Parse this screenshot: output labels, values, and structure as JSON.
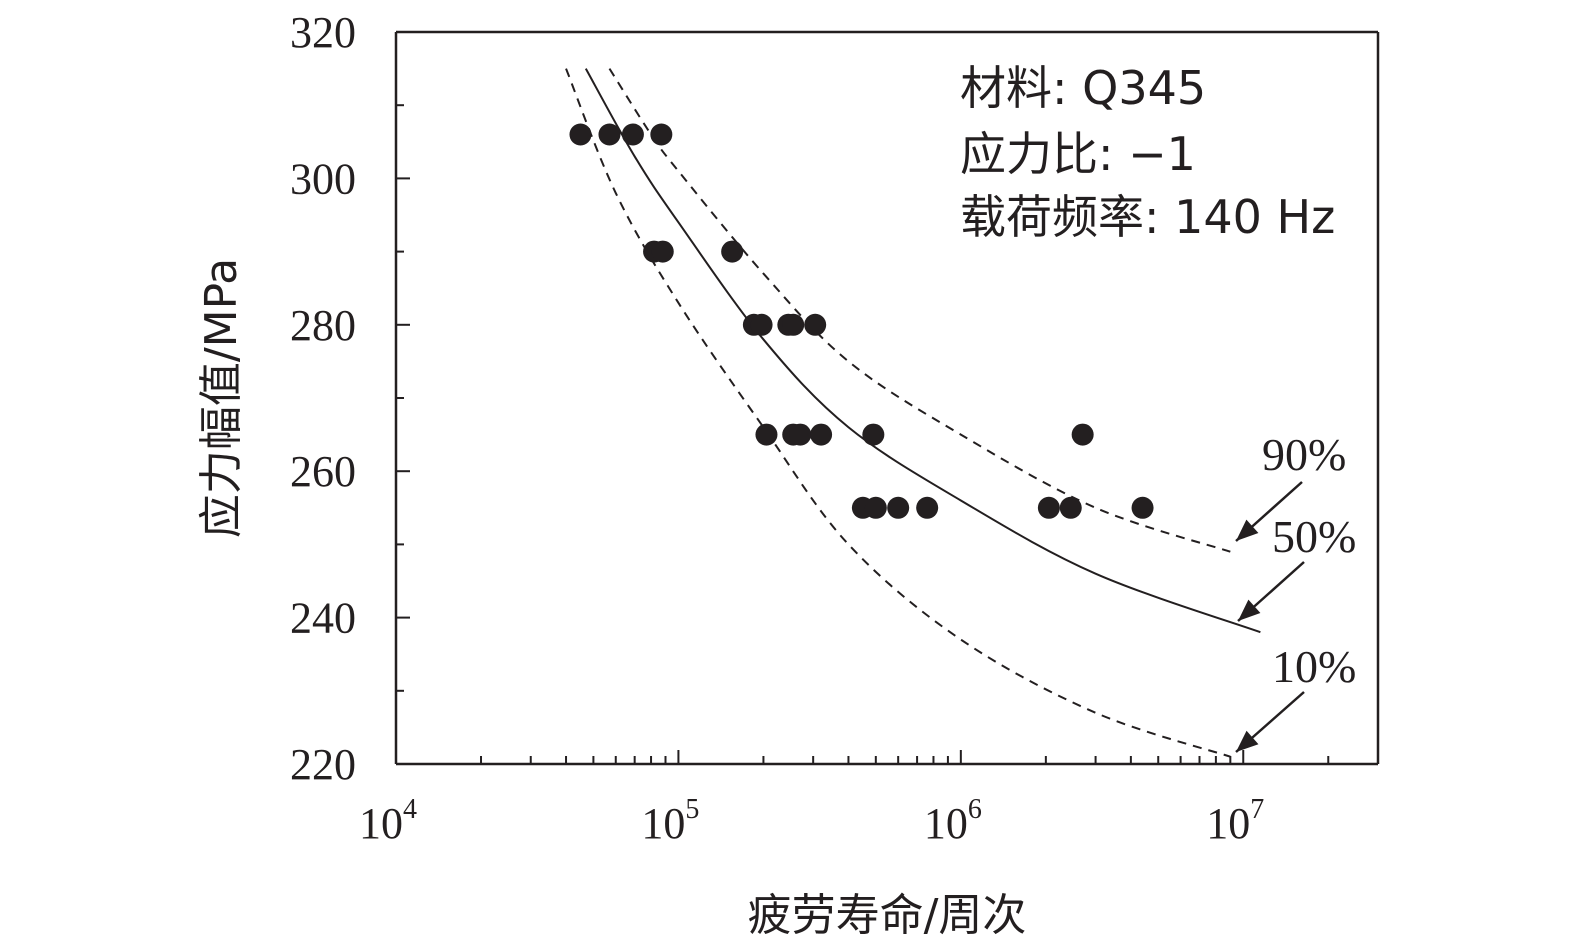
{
  "chart_data": {
    "type": "scatter",
    "title": "",
    "xlabel": "疲劳寿命/周次",
    "ylabel": "应力幅值/MPa",
    "xscale": "log",
    "xlim": [
      10000,
      30000000
    ],
    "ylim": [
      220,
      320
    ],
    "x_ticks": [
      {
        "value": 10000,
        "base": "10",
        "exp": "4"
      },
      {
        "value": 100000,
        "base": "10",
        "exp": "5"
      },
      {
        "value": 1000000,
        "base": "10",
        "exp": "6"
      },
      {
        "value": 10000000,
        "base": "10",
        "exp": "7"
      }
    ],
    "y_ticks": [
      "220",
      "240",
      "260",
      "280",
      "300",
      "320"
    ],
    "info_lines": [
      "材料: Q345",
      "应力比: −1",
      "载荷频率: 140 Hz"
    ],
    "points": [
      {
        "x": 45000,
        "y": 306
      },
      {
        "x": 57000,
        "y": 306
      },
      {
        "x": 69000,
        "y": 306
      },
      {
        "x": 87000,
        "y": 306
      },
      {
        "x": 82000,
        "y": 290
      },
      {
        "x": 88000,
        "y": 290
      },
      {
        "x": 155000,
        "y": 290
      },
      {
        "x": 185000,
        "y": 280
      },
      {
        "x": 197000,
        "y": 280
      },
      {
        "x": 245000,
        "y": 280
      },
      {
        "x": 255000,
        "y": 280
      },
      {
        "x": 305000,
        "y": 280
      },
      {
        "x": 205000,
        "y": 265
      },
      {
        "x": 255000,
        "y": 265
      },
      {
        "x": 270000,
        "y": 265
      },
      {
        "x": 320000,
        "y": 265
      },
      {
        "x": 490000,
        "y": 265
      },
      {
        "x": 2700000,
        "y": 265
      },
      {
        "x": 450000,
        "y": 255
      },
      {
        "x": 500000,
        "y": 255
      },
      {
        "x": 600000,
        "y": 255
      },
      {
        "x": 760000,
        "y": 255
      },
      {
        "x": 2050000,
        "y": 255
      },
      {
        "x": 2450000,
        "y": 255
      },
      {
        "x": 4400000,
        "y": 255
      }
    ],
    "curves": [
      {
        "name": "10%",
        "style": "dashed",
        "points": [
          [
            40000,
            315
          ],
          [
            60000,
            298
          ],
          [
            100000,
            283
          ],
          [
            200000,
            266
          ],
          [
            400000,
            250
          ],
          [
            1000000,
            237
          ],
          [
            3000000,
            227
          ],
          [
            9000000,
            221
          ]
        ]
      },
      {
        "name": "50%",
        "style": "solid",
        "points": [
          [
            47000,
            315
          ],
          [
            70000,
            303
          ],
          [
            100000,
            294
          ],
          [
            200000,
            278
          ],
          [
            400000,
            266
          ],
          [
            1000000,
            256
          ],
          [
            3000000,
            246
          ],
          [
            11500000,
            238
          ]
        ]
      },
      {
        "name": "90%",
        "style": "dashed",
        "points": [
          [
            57000,
            315
          ],
          [
            80000,
            306
          ],
          [
            100000,
            301
          ],
          [
            200000,
            287
          ],
          [
            400000,
            275
          ],
          [
            1000000,
            265
          ],
          [
            3000000,
            255
          ],
          [
            9000000,
            249
          ]
        ]
      }
    ]
  }
}
